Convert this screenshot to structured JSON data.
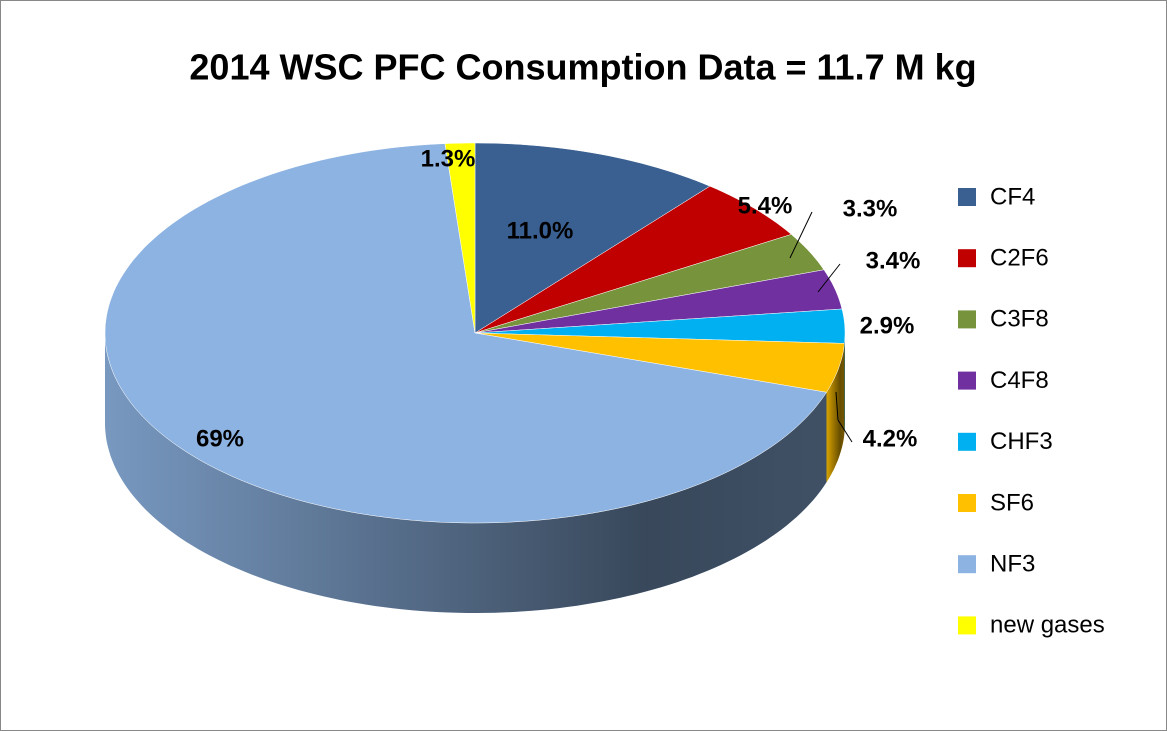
{
  "chart_data": {
    "type": "pie",
    "title": "2014 WSC PFC Consumption Data = 11.7 M kg",
    "categories": [
      "CF4",
      "C2F6",
      "C3F8",
      "C4F8",
      "CHF3",
      "SF6",
      "NF3",
      "new gases"
    ],
    "values": [
      11.0,
      5.4,
      3.3,
      3.4,
      2.9,
      4.2,
      69,
      1.3
    ],
    "value_labels": [
      "11.0%",
      "5.4%",
      "3.3%",
      "3.4%",
      "2.9%",
      "4.2%",
      "69%",
      "1.3%"
    ],
    "colors": [
      "#3a5f91",
      "#c00000",
      "#77933c",
      "#7030a0",
      "#00b0f0",
      "#ffc000",
      "#8db3e2",
      "#ffff00"
    ],
    "legend": "right"
  }
}
